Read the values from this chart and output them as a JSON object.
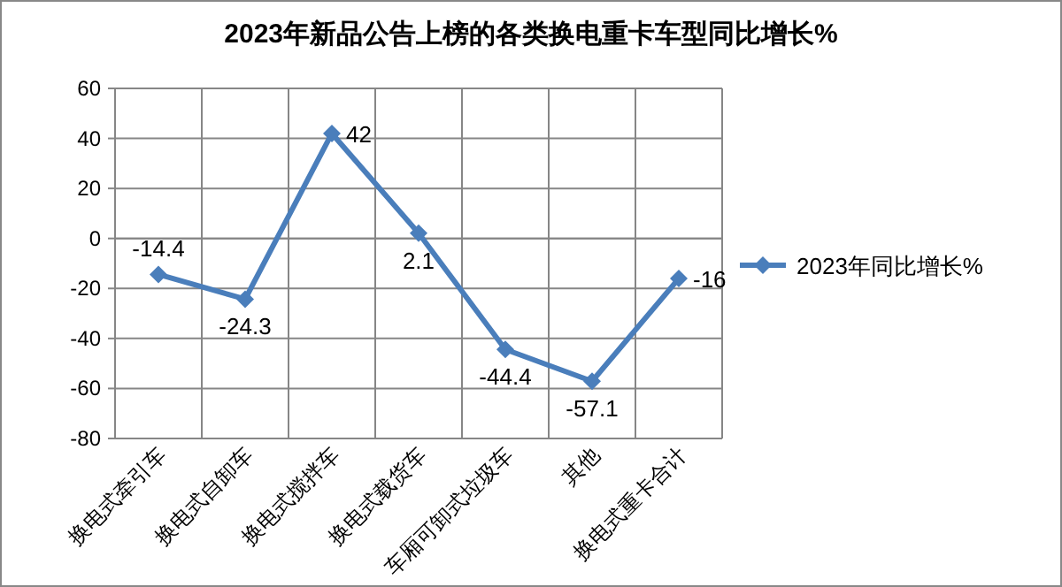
{
  "chart_data": {
    "type": "line",
    "title": "2023年新品公告上榜的各类换电重卡车型同比增长%",
    "categories": [
      "换电式牵引车",
      "换电式自卸车",
      "换电式搅拌车",
      "换电式载货车",
      "车厢可卸式垃圾车",
      "其他",
      "换电式重卡合计"
    ],
    "series": [
      {
        "name": "2023年同比增长%",
        "color": "#4a7ebb",
        "values": [
          -14.4,
          -24.3,
          42,
          2.1,
          -44.4,
          -57.1,
          -16
        ]
      }
    ],
    "ylim": [
      -80,
      60
    ],
    "yticks": [
      -80,
      -60,
      -40,
      -20,
      0,
      20,
      40,
      60
    ],
    "grid": true,
    "legend": "right",
    "marker": "diamond",
    "line_style": "solid",
    "data_labels": true
  }
}
